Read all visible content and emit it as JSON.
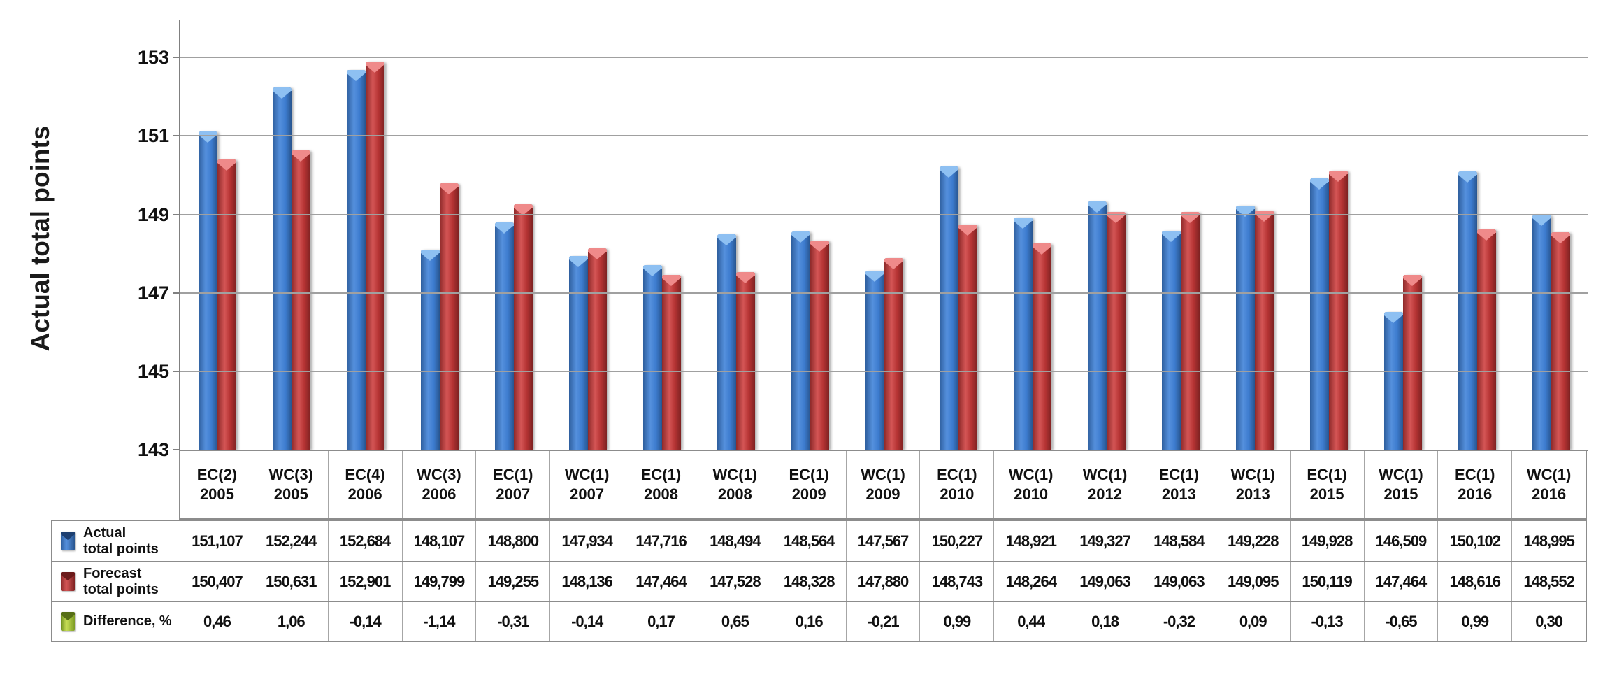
{
  "chart_data": {
    "type": "bar",
    "title": "",
    "ylabel": "Actual total points",
    "xlabel": "",
    "ylim": [
      143,
      153.95
    ],
    "yticks": [
      153,
      151,
      149,
      147,
      145,
      143
    ],
    "grid": "horizontal",
    "legend_position": "table-left",
    "categories": [
      {
        "label": "EC(2)",
        "year": "2005"
      },
      {
        "label": "WC(3)",
        "year": "2005"
      },
      {
        "label": "EC(4)",
        "year": "2006"
      },
      {
        "label": "WC(3)",
        "year": "2006"
      },
      {
        "label": "EC(1)",
        "year": "2007"
      },
      {
        "label": "WC(1)",
        "year": "2007"
      },
      {
        "label": "EC(1)",
        "year": "2008"
      },
      {
        "label": "WC(1)",
        "year": "2008"
      },
      {
        "label": "EC(1)",
        "year": "2009"
      },
      {
        "label": "WC(1)",
        "year": "2009"
      },
      {
        "label": "EC(1)",
        "year": "2010"
      },
      {
        "label": "WC(1)",
        "year": "2010"
      },
      {
        "label": "WC(1)",
        "year": "2012"
      },
      {
        "label": "EC(1)",
        "year": "2013"
      },
      {
        "label": "WC(1)",
        "year": "2013"
      },
      {
        "label": "EC(1)",
        "year": "2015"
      },
      {
        "label": "WC(1)",
        "year": "2015"
      },
      {
        "label": "EC(1)",
        "year": "2016"
      },
      {
        "label": "WC(1)",
        "year": "2016"
      }
    ],
    "series": [
      {
        "name_lines": [
          "Actual",
          "total points"
        ],
        "render": "bar",
        "key_color": "blue",
        "color": "#3d7ccf",
        "values": [
          151.107,
          152.244,
          152.684,
          148.107,
          148.8,
          147.934,
          147.716,
          148.494,
          148.564,
          147.567,
          150.227,
          148.921,
          149.327,
          148.584,
          149.228,
          149.928,
          146.509,
          150.102,
          148.995
        ],
        "display": [
          "151,107",
          "152,244",
          "152,684",
          "148,107",
          "148,800",
          "147,934",
          "147,716",
          "148,494",
          "148,564",
          "147,567",
          "150,227",
          "148,921",
          "149,327",
          "148,584",
          "149,228",
          "149,928",
          "146,509",
          "150,102",
          "148,995"
        ]
      },
      {
        "name_lines": [
          "Forecast",
          "total points"
        ],
        "render": "bar",
        "key_color": "red",
        "color": "#c23b3b",
        "values": [
          150.407,
          150.631,
          152.901,
          149.799,
          149.255,
          148.136,
          147.464,
          147.528,
          148.328,
          147.88,
          148.743,
          148.264,
          149.063,
          149.063,
          149.095,
          150.119,
          147.464,
          148.616,
          148.552
        ],
        "display": [
          "150,407",
          "150,631",
          "152,901",
          "149,799",
          "149,255",
          "148,136",
          "147,464",
          "147,528",
          "148,328",
          "147,880",
          "148,743",
          "148,264",
          "149,063",
          "149,063",
          "149,095",
          "150,119",
          "147,464",
          "148,616",
          "148,552"
        ]
      },
      {
        "name_lines": [
          "Difference, %"
        ],
        "render": "table-only",
        "key_color": "green",
        "color": "#9cba3a",
        "values": [
          0.46,
          1.06,
          -0.14,
          -1.14,
          -0.31,
          -0.14,
          0.17,
          0.65,
          0.16,
          -0.21,
          0.99,
          0.44,
          0.18,
          -0.32,
          0.09,
          -0.13,
          -0.65,
          0.99,
          0.3
        ],
        "display": [
          "0,46",
          "1,06",
          "-0,14",
          "-1,14",
          "-0,31",
          "-0,14",
          "0,17",
          "0,65",
          "0,16",
          "-0,21",
          "0,99",
          "0,44",
          "0,18",
          "-0,32",
          "0,09",
          "-0,13",
          "-0,65",
          "0,99",
          "0,30"
        ]
      }
    ],
    "colors": {
      "axis": "#808080",
      "gridline": "#a0a0a0",
      "text": "#000000",
      "actual_bar": "#3d7ccf",
      "forecast_bar": "#c23b3b",
      "difference_icon": "#9cba3a"
    }
  }
}
